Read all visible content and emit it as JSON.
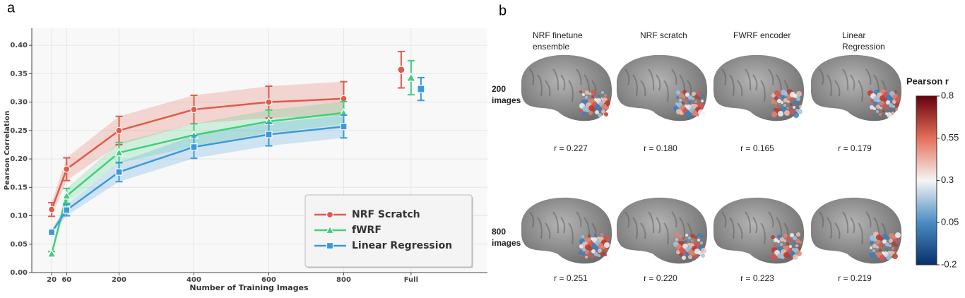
{
  "chart_data": {
    "type": "line",
    "panel_label": "a",
    "xlabel": "Number of Training Images",
    "ylabel": "Pearson Correlation",
    "x": [
      20,
      60,
      200,
      400,
      600,
      800
    ],
    "xlim": [
      -33,
      1184
    ],
    "xticks": [
      20,
      60,
      200,
      400,
      600,
      800,
      {
        "value": 980,
        "label": "Full"
      }
    ],
    "ylim": [
      0,
      0.43
    ],
    "yticks": [
      0.0,
      0.05,
      0.1,
      0.15,
      0.2,
      0.25,
      0.3,
      0.35,
      0.4
    ],
    "grid": true,
    "legend": "lower right",
    "series": [
      {
        "name": "NRF Scratch",
        "color": "#e05a4b",
        "marker": "circle",
        "values": [
          0.111,
          0.182,
          0.25,
          0.287,
          0.3,
          0.306
        ],
        "errors": [
          0.012,
          0.02,
          0.025,
          0.025,
          0.028,
          0.03
        ],
        "full": {
          "value": 0.357,
          "error": 0.032
        }
      },
      {
        "name": "fWRF",
        "color": "#3ecf7a",
        "marker": "triangle",
        "values": [
          0.033,
          0.135,
          0.211,
          0.242,
          0.266,
          0.281
        ],
        "errors": [
          0.004,
          0.013,
          0.018,
          0.02,
          0.02,
          0.02
        ],
        "full": {
          "value": 0.343,
          "error": 0.03
        }
      },
      {
        "name": "Linear Regression",
        "color": "#3a9ad9",
        "marker": "square",
        "values": [
          0.071,
          0.11,
          0.177,
          0.221,
          0.243,
          0.257
        ],
        "errors": [
          0.004,
          0.01,
          0.017,
          0.02,
          0.02,
          0.02
        ],
        "full": {
          "value": 0.323,
          "error": 0.02
        }
      }
    ]
  },
  "panel_b": {
    "panel_label": "b",
    "columns": [
      "NRF finetune ensemble",
      "NRF scratch",
      "FWRF encoder",
      "Linear Regression"
    ],
    "rows": [
      {
        "label": "200 images",
        "r": [
          "r = 0.227",
          "r = 0.180",
          "r = 0.165",
          "r = 0.179"
        ]
      },
      {
        "label": "800 images",
        "r": [
          "r = 0.251",
          "r = 0.220",
          "r = 0.223",
          "r = 0.219"
        ]
      }
    ],
    "colorbar": {
      "title": "Pearson r",
      "lim": [
        -0.2,
        0.8
      ],
      "ticks": [
        -0.2,
        0.05,
        0.3,
        0.55,
        0.8
      ]
    }
  }
}
